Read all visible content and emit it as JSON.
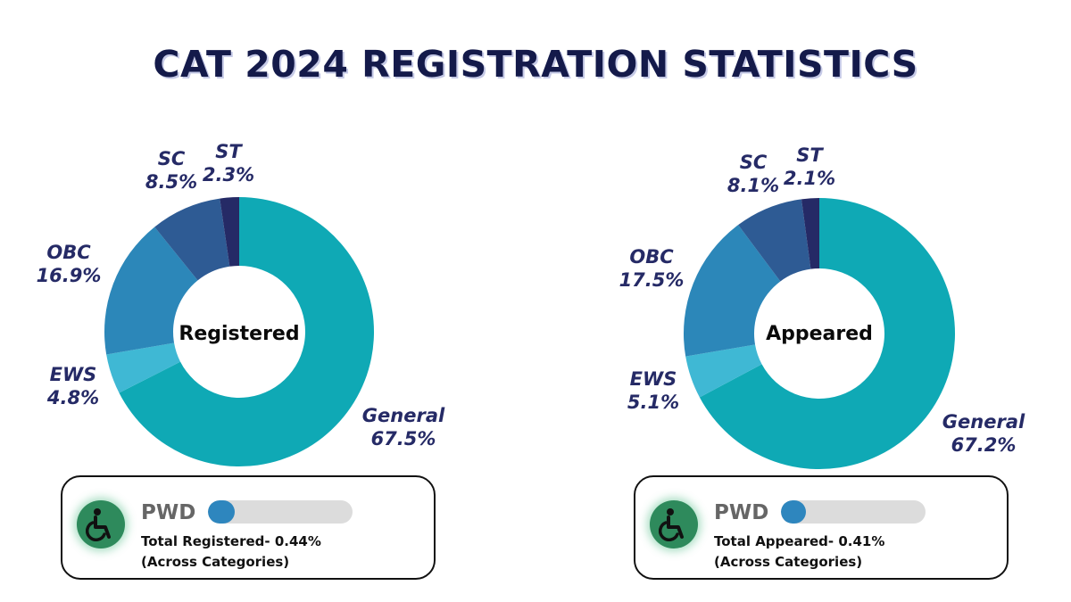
{
  "title": "CAT 2024 REGISTRATION STATISTICS",
  "colors": {
    "General": "#0fa9b5",
    "EWS": "#3fb8d4",
    "OBC": "#2c87b9",
    "SC": "#2e5b94",
    "ST": "#252a66",
    "label": "#252a66",
    "title": "#141a4a"
  },
  "chart_data": [
    {
      "type": "pie",
      "center_label": "Registered",
      "slices": [
        {
          "name": "General",
          "pct_label": "67.5%",
          "value": 67.5
        },
        {
          "name": "EWS",
          "pct_label": "4.8%",
          "value": 4.8
        },
        {
          "name": "OBC",
          "pct_label": "16.9%",
          "value": 16.9
        },
        {
          "name": "SC",
          "pct_label": "8.5%",
          "value": 8.5
        },
        {
          "name": "ST",
          "pct_label": "2.3%",
          "value": 2.3
        }
      ]
    },
    {
      "type": "pie",
      "center_label": "Appeared",
      "slices": [
        {
          "name": "General",
          "pct_label": "67.2%",
          "value": 67.2
        },
        {
          "name": "EWS",
          "pct_label": "5.1%",
          "value": 5.1
        },
        {
          "name": "OBC",
          "pct_label": "17.5%",
          "value": 17.5
        },
        {
          "name": "SC",
          "pct_label": "8.1%",
          "value": 8.1
        },
        {
          "name": "ST",
          "pct_label": "2.1%",
          "value": 2.1
        }
      ]
    }
  ],
  "pwd": [
    {
      "label": "PWD",
      "line1": "Total Registered- 0.44%",
      "line2": "(Across Categories)",
      "percent": 0.44,
      "icon": "wheelchair-icon"
    },
    {
      "label": "PWD",
      "line1": "Total Appeared- 0.41%",
      "line2": "(Across Categories)",
      "percent": 0.41,
      "icon": "wheelchair-icon"
    }
  ]
}
